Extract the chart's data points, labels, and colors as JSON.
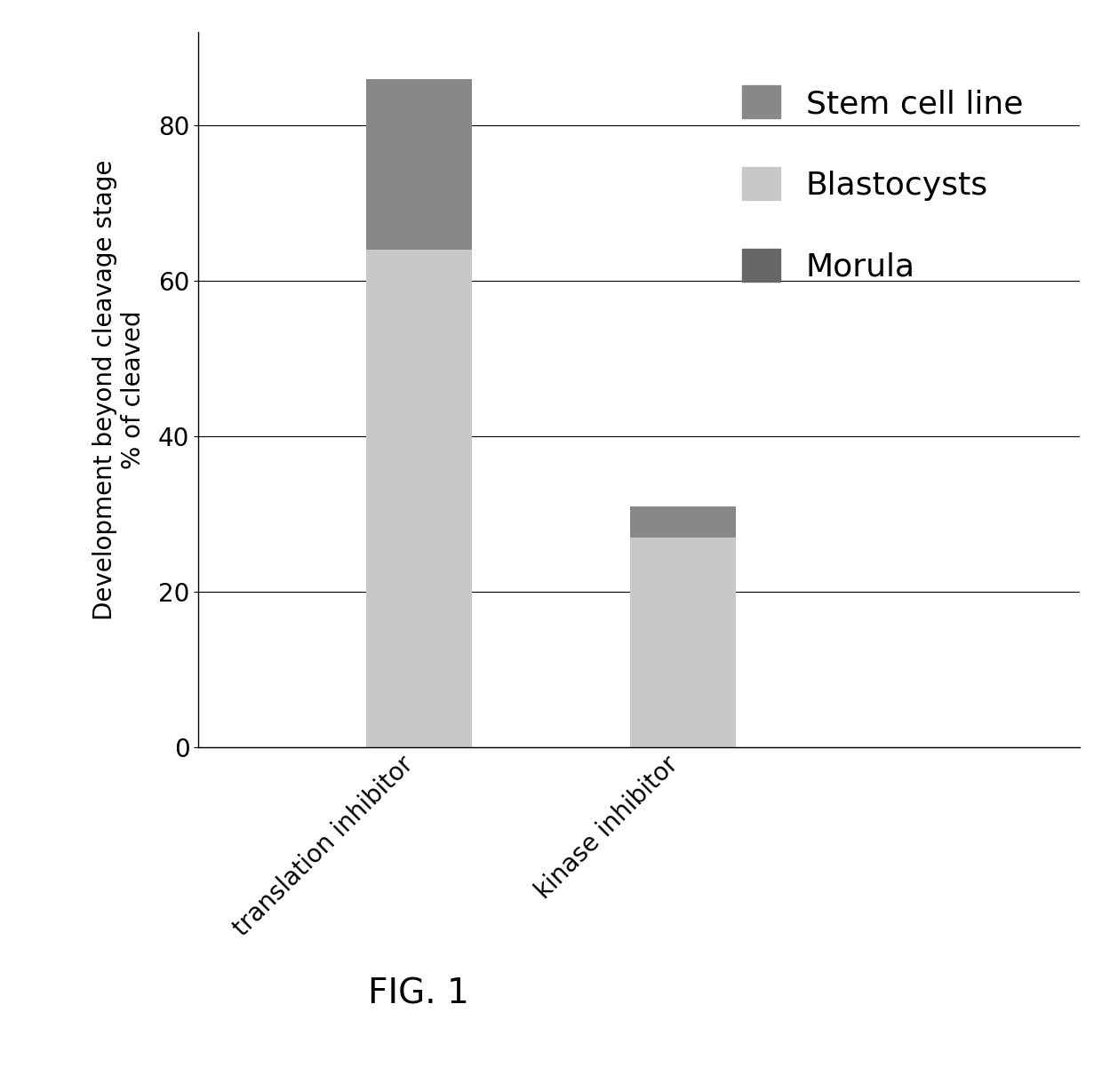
{
  "categories": [
    "translation inhibitor",
    "kinase inhibitor"
  ],
  "blastocysts": [
    64,
    27
  ],
  "stem_cell_line": [
    22,
    4
  ],
  "morula": [
    0,
    0
  ],
  "color_blastocysts": "#c8c8c8",
  "color_stem_cell": "#888888",
  "color_morula": "#666666",
  "ylabel_line1": "Development beyond cleavage stage",
  "ylabel_line2": "% of cleaved",
  "ylim": [
    0,
    92
  ],
  "yticks": [
    0,
    20,
    40,
    60,
    80
  ],
  "fig_caption": "FIG. 1",
  "bar_width": 0.12,
  "x_positions": [
    0.25,
    0.55
  ],
  "x_lim": [
    0.0,
    1.0
  ],
  "background_color": "#ffffff",
  "legend_stem_label": "Stem cell line",
  "legend_blast_label": "Blastocysts",
  "legend_morula_label": "Morula"
}
